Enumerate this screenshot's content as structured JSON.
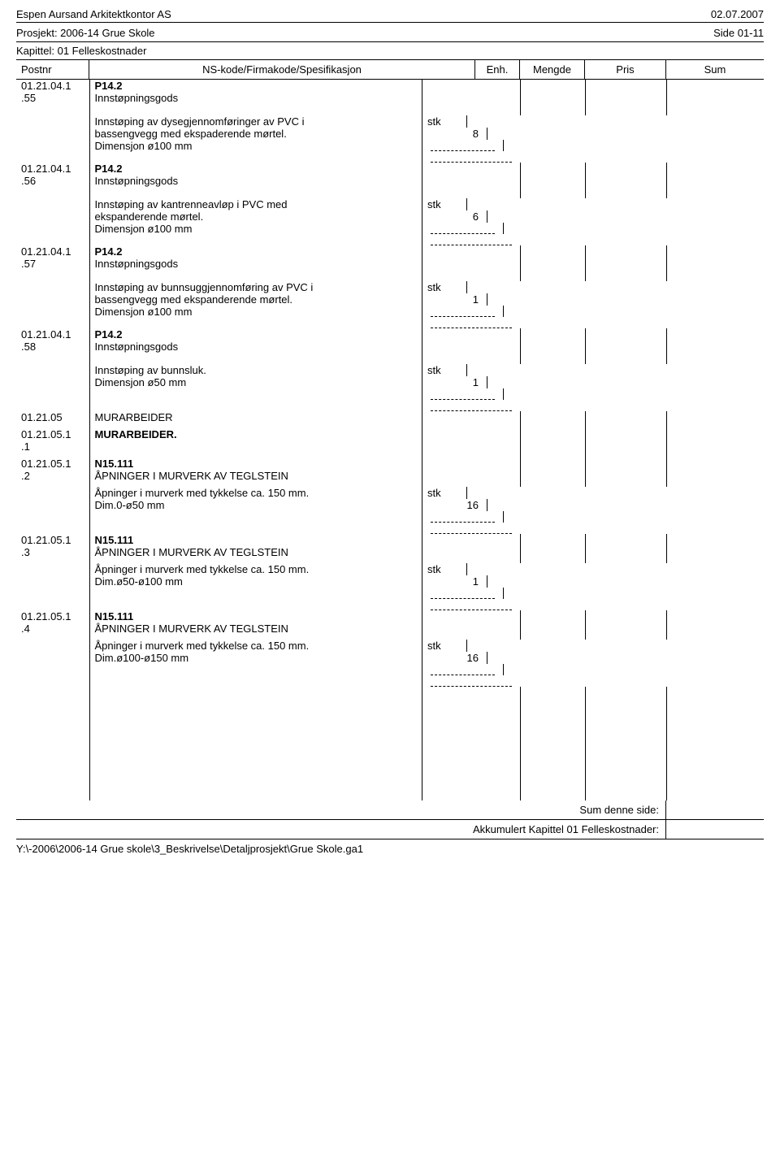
{
  "header": {
    "company": "Espen Aursand Arkitektkontor AS",
    "date": "02.07.2007",
    "project": "Prosjekt: 2006-14 Grue Skole",
    "page": "Side 01-11",
    "chapter": "Kapittel: 01 Felleskostnader"
  },
  "columns": {
    "postnr": "Postnr",
    "spec": "NS-kode/Firmakode/Spesifikasjon",
    "enh": "Enh.",
    "mengde": "Mengde",
    "pris": "Pris",
    "sum": "Sum"
  },
  "rows": [
    {
      "postnr": "01.21.04.1\n.55",
      "spec_bold": "P14.2",
      "spec": "Innstøpningsgods"
    },
    {
      "spacer": true
    },
    {
      "spec": "Innstøping av dysegjennomføringer av PVC i\nbassengvegg med ekspaderende mørtel.\nDimensjon ø100 mm",
      "enh": "stk",
      "mengde": "8",
      "dash": true
    },
    {
      "postnr": "01.21.04.1\n.56",
      "spec_bold": "P14.2",
      "spec": "Innstøpningsgods"
    },
    {
      "spacer": true
    },
    {
      "spec": "Innstøping av kantrenneavløp i PVC med\nekspanderende mørtel.\nDimensjon ø100 mm",
      "enh": "stk",
      "mengde": "6",
      "dash": true
    },
    {
      "postnr": "01.21.04.1\n.57",
      "spec_bold": "P14.2",
      "spec": "Innstøpningsgods"
    },
    {
      "spacer": true
    },
    {
      "spec": "Innstøping av bunnsuggjennomføring av PVC i\nbassengvegg med ekspanderende mørtel.\nDimensjon ø100 mm",
      "enh": "stk",
      "mengde": "1",
      "dash": true
    },
    {
      "postnr": "01.21.04.1\n.58",
      "spec_bold": "P14.2",
      "spec": "Innstøpningsgods"
    },
    {
      "spacer": true
    },
    {
      "spec": "Innstøping av bunnsluk.\nDimensjon ø50 mm",
      "enh": "stk",
      "mengde": "1",
      "dash": true
    },
    {
      "postnr": "01.21.05",
      "spec": "MURARBEIDER"
    },
    {
      "spacer_sm": true
    },
    {
      "postnr": "01.21.05.1\n.1",
      "spec_bold": "MURARBEIDER."
    },
    {
      "spacer_sm": true
    },
    {
      "postnr": "01.21.05.1\n.2",
      "spec_bold": "N15.111",
      "spec": "ÅPNINGER I MURVERK AV TEGLSTEIN"
    },
    {
      "spacer_sm": true
    },
    {
      "spec": "Åpninger i murverk med tykkelse ca. 150 mm.\nDim.0-ø50 mm",
      "enh": "stk",
      "mengde": "16",
      "dash": true
    },
    {
      "postnr": "01.21.05.1\n.3",
      "spec_bold": "N15.111",
      "spec": "ÅPNINGER I MURVERK AV TEGLSTEIN"
    },
    {
      "spacer_sm": true
    },
    {
      "spec": "Åpninger i murverk med tykkelse ca. 150 mm.\nDim.ø50-ø100 mm",
      "enh": "stk",
      "mengde": "1",
      "dash": true
    },
    {
      "postnr": "01.21.05.1\n.4",
      "spec_bold": "N15.111",
      "spec": "ÅPNINGER I MURVERK AV TEGLSTEIN"
    },
    {
      "spacer_sm": true
    },
    {
      "spec": "Åpninger i murverk med tykkelse ca. 150 mm.\nDim.ø100-ø150 mm",
      "enh": "stk",
      "mengde": "16",
      "dash": true
    }
  ],
  "footer": {
    "sum_page": "Sum denne side:",
    "sum_chapter": "Akkumulert Kapittel 01 Felleskostnader:",
    "filepath": "Y:\\-2006\\2006-14 Grue skole\\3_Beskrivelse\\Detaljprosjekt\\Grue Skole.ga1"
  }
}
